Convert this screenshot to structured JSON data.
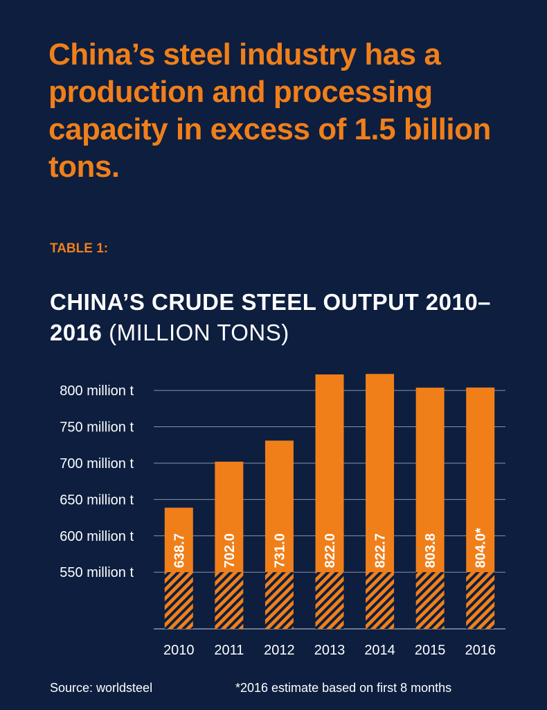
{
  "headline": "China’s steel industry has a production and processing capacity in excess of 1.5 billion tons.",
  "table_label": "TABLE 1:",
  "chart_title": {
    "bold_part": "CHINA’S CRUDE STEEL OUTPUT 2010–2016",
    "light_part": "(MILLION TONS)"
  },
  "footer": {
    "source": "Source: worldsteel",
    "note": "*2016 estimate based on first 8 months"
  },
  "colors": {
    "background": "#0d1e3f",
    "accent": "#f07f1a",
    "text": "#ffffff",
    "grid": "#8d96a8"
  },
  "chart_data": {
    "type": "bar",
    "categories": [
      "2010",
      "2011",
      "2012",
      "2013",
      "2014",
      "2015",
      "2016"
    ],
    "values": [
      638.7,
      702.0,
      731.0,
      822.0,
      822.7,
      803.8,
      804.0
    ],
    "data_labels": [
      "638.7",
      "702.0",
      "731.0",
      "822.0",
      "822.7",
      "803.8",
      "804.0*"
    ],
    "yticks": [
      550,
      600,
      650,
      700,
      750,
      800
    ],
    "ytick_labels": [
      "550 million t",
      "600 million t",
      "650 million t",
      "700 million t",
      "750 million t",
      "800 million t"
    ],
    "ylim": [
      472,
      822.7
    ],
    "axis_break_at": 550,
    "grid": true
  }
}
